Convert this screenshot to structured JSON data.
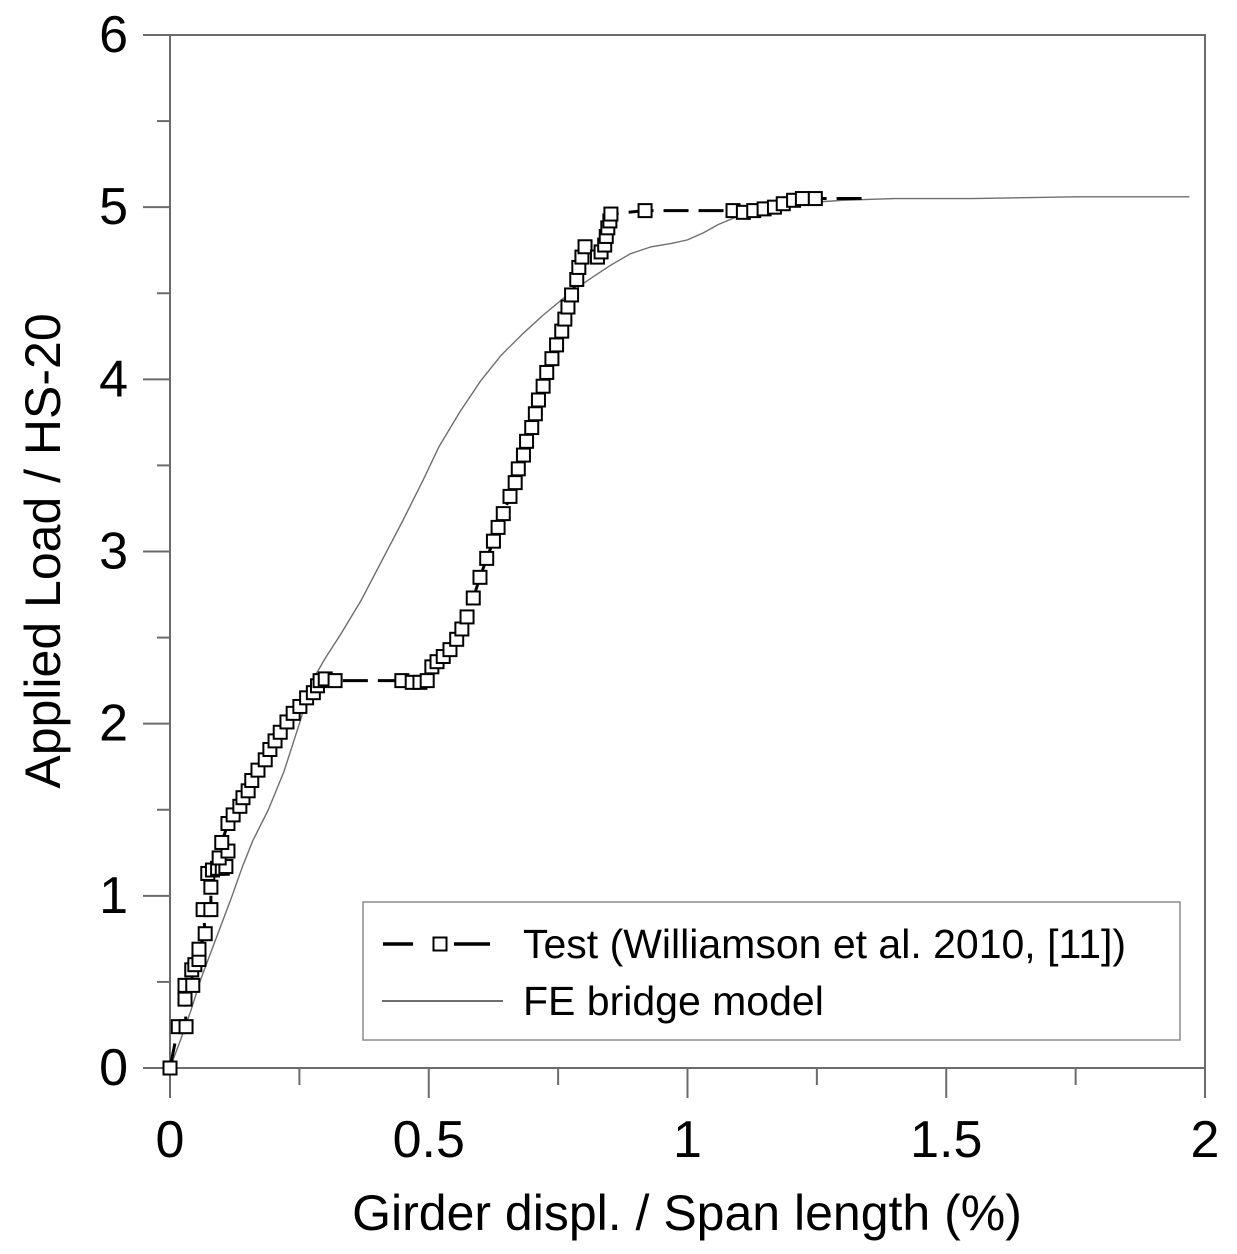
{
  "chart_data": {
    "type": "line",
    "title": "",
    "xlabel": "Girder displ. / Span length (%)",
    "ylabel": "Applied Load / HS-20",
    "xlim": [
      0,
      2
    ],
    "ylim": [
      0,
      6
    ],
    "grid": false,
    "legend_position": "lower-right-inside",
    "x_major_ticks": [
      {
        "v": 0,
        "label": "0"
      },
      {
        "v": 0.5,
        "label": "0.5"
      },
      {
        "v": 1,
        "label": "1"
      },
      {
        "v": 1.5,
        "label": "1.5"
      },
      {
        "v": 2,
        "label": "2"
      }
    ],
    "x_minor_ticks": [
      0.25,
      0.75,
      1.25,
      1.75
    ],
    "y_major_ticks": [
      {
        "v": 0,
        "label": "0"
      },
      {
        "v": 1,
        "label": "1"
      },
      {
        "v": 2,
        "label": "2"
      },
      {
        "v": 3,
        "label": "3"
      },
      {
        "v": 4,
        "label": "4"
      },
      {
        "v": 5,
        "label": "5"
      },
      {
        "v": 6,
        "label": "6"
      }
    ],
    "y_minor_ticks": [
      0.5,
      1.5,
      2.5,
      3.5,
      4.5,
      5.5
    ],
    "series": [
      {
        "name": "Test (Williamson et al. 2010, [11])",
        "style": "dashed",
        "marker": "open-square",
        "color": "#000000",
        "tail_no_marker": true,
        "points": [
          [
            0.0,
            0.0
          ],
          [
            0.016,
            0.24
          ],
          [
            0.031,
            0.24
          ],
          [
            0.029,
            0.4
          ],
          [
            0.029,
            0.48
          ],
          [
            0.044,
            0.48
          ],
          [
            0.042,
            0.57
          ],
          [
            0.048,
            0.6
          ],
          [
            0.056,
            0.63
          ],
          [
            0.056,
            0.69
          ],
          [
            0.068,
            0.78
          ],
          [
            0.064,
            0.92
          ],
          [
            0.079,
            0.92
          ],
          [
            0.079,
            1.05
          ],
          [
            0.073,
            1.13
          ],
          [
            0.082,
            1.15
          ],
          [
            0.092,
            1.16
          ],
          [
            0.101,
            1.16
          ],
          [
            0.108,
            1.17
          ],
          [
            0.095,
            1.22
          ],
          [
            0.112,
            1.26
          ],
          [
            0.1,
            1.31
          ],
          [
            0.112,
            1.42
          ],
          [
            0.122,
            1.47
          ],
          [
            0.135,
            1.52
          ],
          [
            0.141,
            1.57
          ],
          [
            0.151,
            1.61
          ],
          [
            0.158,
            1.67
          ],
          [
            0.17,
            1.73
          ],
          [
            0.184,
            1.79
          ],
          [
            0.193,
            1.85
          ],
          [
            0.203,
            1.9
          ],
          [
            0.213,
            1.95
          ],
          [
            0.226,
            2.01
          ],
          [
            0.238,
            2.06
          ],
          [
            0.251,
            2.1
          ],
          [
            0.264,
            2.15
          ],
          [
            0.277,
            2.18
          ],
          [
            0.285,
            2.22
          ],
          [
            0.29,
            2.25
          ],
          [
            0.3,
            2.26
          ],
          [
            0.319,
            2.25
          ],
          [
            0.448,
            2.25
          ],
          [
            0.468,
            2.24
          ],
          [
            0.483,
            2.24
          ],
          [
            0.497,
            2.25
          ],
          [
            0.506,
            2.33
          ],
          [
            0.516,
            2.36
          ],
          [
            0.528,
            2.39
          ],
          [
            0.541,
            2.43
          ],
          [
            0.554,
            2.49
          ],
          [
            0.564,
            2.55
          ],
          [
            0.574,
            2.62
          ],
          [
            0.586,
            2.73
          ],
          [
            0.599,
            2.85
          ],
          [
            0.612,
            2.96
          ],
          [
            0.625,
            3.06
          ],
          [
            0.634,
            3.14
          ],
          [
            0.644,
            3.22
          ],
          [
            0.657,
            3.32
          ],
          [
            0.667,
            3.4
          ],
          [
            0.673,
            3.48
          ],
          [
            0.683,
            3.56
          ],
          [
            0.689,
            3.64
          ],
          [
            0.699,
            3.72
          ],
          [
            0.706,
            3.8
          ],
          [
            0.712,
            3.88
          ],
          [
            0.721,
            3.96
          ],
          [
            0.728,
            4.04
          ],
          [
            0.738,
            4.12
          ],
          [
            0.747,
            4.2
          ],
          [
            0.757,
            4.28
          ],
          [
            0.763,
            4.35
          ],
          [
            0.769,
            4.42
          ],
          [
            0.776,
            4.49
          ],
          [
            0.786,
            4.58
          ],
          [
            0.79,
            4.65
          ],
          [
            0.796,
            4.71
          ],
          [
            0.802,
            4.77
          ],
          [
            0.826,
            4.71
          ],
          [
            0.833,
            4.74
          ],
          [
            0.84,
            4.78
          ],
          [
            0.843,
            4.83
          ],
          [
            0.846,
            4.88
          ],
          [
            0.85,
            4.92
          ],
          [
            0.852,
            4.96
          ],
          [
            0.918,
            4.98
          ],
          [
            1.088,
            4.98
          ],
          [
            1.108,
            4.97
          ],
          [
            1.128,
            4.98
          ],
          [
            1.148,
            4.99
          ],
          [
            1.168,
            5.0
          ],
          [
            1.185,
            5.02
          ],
          [
            1.205,
            5.04
          ],
          [
            1.222,
            5.05
          ],
          [
            1.247,
            5.05
          ],
          [
            1.35,
            5.05
          ]
        ]
      },
      {
        "name": "FE bridge model",
        "style": "solid",
        "marker": "none",
        "color": "#6e6e6e",
        "points": [
          [
            0.0,
            0.0
          ],
          [
            0.02,
            0.16
          ],
          [
            0.04,
            0.33
          ],
          [
            0.06,
            0.52
          ],
          [
            0.08,
            0.68
          ],
          [
            0.1,
            0.84
          ],
          [
            0.12,
            1.0
          ],
          [
            0.14,
            1.17
          ],
          [
            0.16,
            1.32
          ],
          [
            0.19,
            1.5
          ],
          [
            0.22,
            1.72
          ],
          [
            0.25,
            2.0
          ],
          [
            0.275,
            2.25
          ],
          [
            0.3,
            2.38
          ],
          [
            0.33,
            2.52
          ],
          [
            0.37,
            2.72
          ],
          [
            0.41,
            2.95
          ],
          [
            0.45,
            3.18
          ],
          [
            0.49,
            3.42
          ],
          [
            0.52,
            3.61
          ],
          [
            0.56,
            3.81
          ],
          [
            0.6,
            3.99
          ],
          [
            0.64,
            4.14
          ],
          [
            0.68,
            4.26
          ],
          [
            0.72,
            4.37
          ],
          [
            0.76,
            4.47
          ],
          [
            0.8,
            4.56
          ],
          [
            0.85,
            4.66
          ],
          [
            0.89,
            4.73
          ],
          [
            0.93,
            4.77
          ],
          [
            0.97,
            4.79
          ],
          [
            1.0,
            4.81
          ],
          [
            1.03,
            4.85
          ],
          [
            1.06,
            4.9
          ],
          [
            1.1,
            4.95
          ],
          [
            1.13,
            4.97
          ],
          [
            1.16,
            4.99
          ],
          [
            1.2,
            5.02
          ],
          [
            1.25,
            5.03
          ],
          [
            1.3,
            5.04
          ],
          [
            1.4,
            5.05
          ],
          [
            1.55,
            5.05
          ],
          [
            1.75,
            5.06
          ],
          [
            1.97,
            5.06
          ]
        ]
      }
    ]
  },
  "colors": {
    "background": "#ffffff",
    "frame": "#6b6b6b",
    "tick": "#6b6b6b",
    "text": "#000000",
    "test_series": "#000000",
    "fe_series": "#6e6e6e",
    "legend_border": "#8c8c8c",
    "marker_fill": "#ffffff"
  }
}
